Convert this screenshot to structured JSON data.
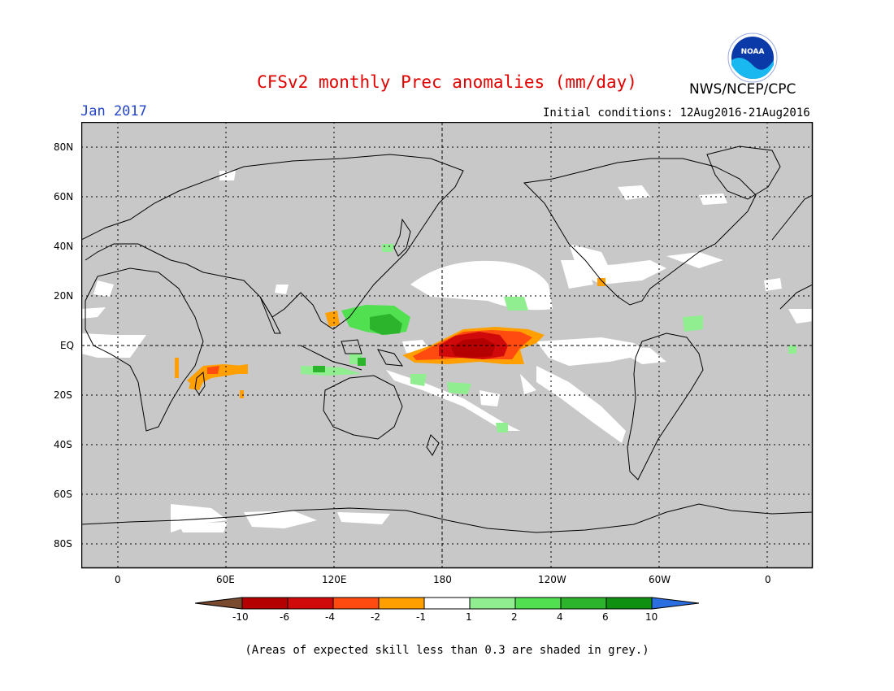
{
  "header": {
    "title": "CFSv2 monthly Prec anomalies (mm/day)",
    "period": "Jan 2017",
    "agency": "NWS/NCEP/CPC",
    "initial_conditions": "Initial conditions: 12Aug2016-21Aug2016",
    "logo_text": "NOAA"
  },
  "map": {
    "lat_labels": [
      "80N",
      "60N",
      "40N",
      "20N",
      "EQ",
      "20S",
      "40S",
      "60S",
      "80S"
    ],
    "lon_labels": [
      "0",
      "60E",
      "120E",
      "180",
      "120W",
      "60W",
      "0"
    ],
    "skill_mask_color": "#c8c8c8",
    "land_outline_color": "#000000"
  },
  "legend": {
    "tick_labels": [
      "-10",
      "-6",
      "-4",
      "-2",
      "-1",
      "1",
      "2",
      "4",
      "6",
      "10"
    ],
    "bin_colors": [
      "#7a4a2e",
      "#b40000",
      "#d00a0a",
      "#ff4a10",
      "#ffa000",
      "#ffffff",
      "#90ee90",
      "#50e050",
      "#2cb42c",
      "#109010",
      "#2a6ee0"
    ]
  },
  "footnote": "(Areas of expected skill less than 0.3 are shaded in grey.)",
  "colors": {
    "title": "#e00000",
    "period": "#2244cc",
    "text": "#000000"
  }
}
